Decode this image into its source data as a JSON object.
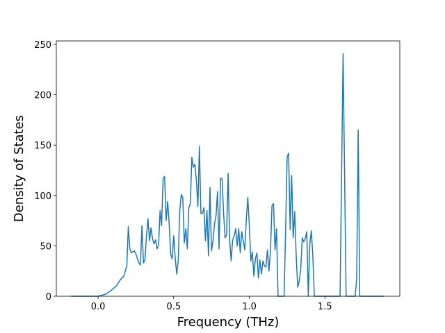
{
  "chart_data": {
    "type": "line",
    "xlabel": "Frequency (THz)",
    "ylabel": "Density of States",
    "x": [
      -0.18,
      0.0,
      0.05,
      0.08,
      0.12,
      0.15,
      0.17,
      0.19,
      0.2,
      0.21,
      0.22,
      0.24,
      0.25,
      0.27,
      0.28,
      0.29,
      0.3,
      0.31,
      0.32,
      0.33,
      0.34,
      0.35,
      0.36,
      0.37,
      0.38,
      0.39,
      0.4,
      0.41,
      0.42,
      0.43,
      0.44,
      0.45,
      0.46,
      0.47,
      0.48,
      0.49,
      0.5,
      0.51,
      0.52,
      0.53,
      0.54,
      0.55,
      0.56,
      0.57,
      0.58,
      0.59,
      0.6,
      0.61,
      0.62,
      0.63,
      0.64,
      0.65,
      0.66,
      0.67,
      0.68,
      0.69,
      0.7,
      0.71,
      0.72,
      0.73,
      0.74,
      0.75,
      0.76,
      0.77,
      0.78,
      0.79,
      0.8,
      0.81,
      0.82,
      0.83,
      0.84,
      0.85,
      0.86,
      0.87,
      0.88,
      0.89,
      0.9,
      0.91,
      0.92,
      0.93,
      0.94,
      0.95,
      0.96,
      0.97,
      0.98,
      0.99,
      1.0,
      1.01,
      1.02,
      1.03,
      1.04,
      1.05,
      1.06,
      1.07,
      1.08,
      1.09,
      1.1,
      1.11,
      1.12,
      1.13,
      1.14,
      1.15,
      1.16,
      1.17,
      1.18,
      1.19,
      1.23,
      1.24,
      1.25,
      1.26,
      1.27,
      1.28,
      1.29,
      1.3,
      1.31,
      1.32,
      1.33,
      1.34,
      1.35,
      1.36,
      1.37,
      1.38,
      1.39,
      1.4,
      1.41,
      1.42,
      1.43,
      1.6,
      1.62,
      1.64,
      1.7,
      1.71,
      1.72,
      1.73,
      1.89
    ],
    "series": [
      {
        "color": "#1f77b4",
        "values": [
          0,
          0,
          2,
          5,
          10,
          17,
          20,
          30,
          69,
          47,
          43,
          45,
          42,
          33,
          31,
          70,
          33,
          36,
          60,
          77,
          55,
          68,
          57,
          52,
          56,
          47,
          51,
          85,
          70,
          117,
          119,
          75,
          94,
          72,
          42,
          37,
          60,
          38,
          22,
          35,
          85,
          101,
          98,
          53,
          67,
          47,
          88,
          92,
          138,
          128,
          131,
          115,
          89,
          149,
          82,
          82,
          88,
          55,
          85,
          40,
          108,
          45,
          55,
          72,
          80,
          104,
          47,
          117,
          117,
          82,
          58,
          61,
          122,
          56,
          35,
          56,
          60,
          67,
          50,
          67,
          43,
          64,
          55,
          46,
          76,
          98,
          70,
          35,
          44,
          20,
          37,
          43,
          18,
          36,
          22,
          35,
          30,
          29,
          46,
          25,
          45,
          90,
          92,
          46,
          67,
          0,
          0,
          65,
          138,
          142,
          66,
          120,
          58,
          84,
          40,
          9,
          15,
          27,
          58,
          54,
          57,
          64,
          0,
          52,
          65,
          40,
          0,
          0,
          241,
          0,
          0,
          18,
          165,
          0,
          0
        ]
      }
    ],
    "xlim": [
      -0.276,
      1.995
    ],
    "ylim": [
      0,
      253.4
    ],
    "xticks": [
      {
        "value": 0,
        "label": "0.0"
      },
      0.5,
      {
        "value": 1,
        "label": "1.0"
      },
      1.5
    ],
    "yticks": [
      0,
      50,
      100,
      150,
      200,
      250
    ]
  }
}
